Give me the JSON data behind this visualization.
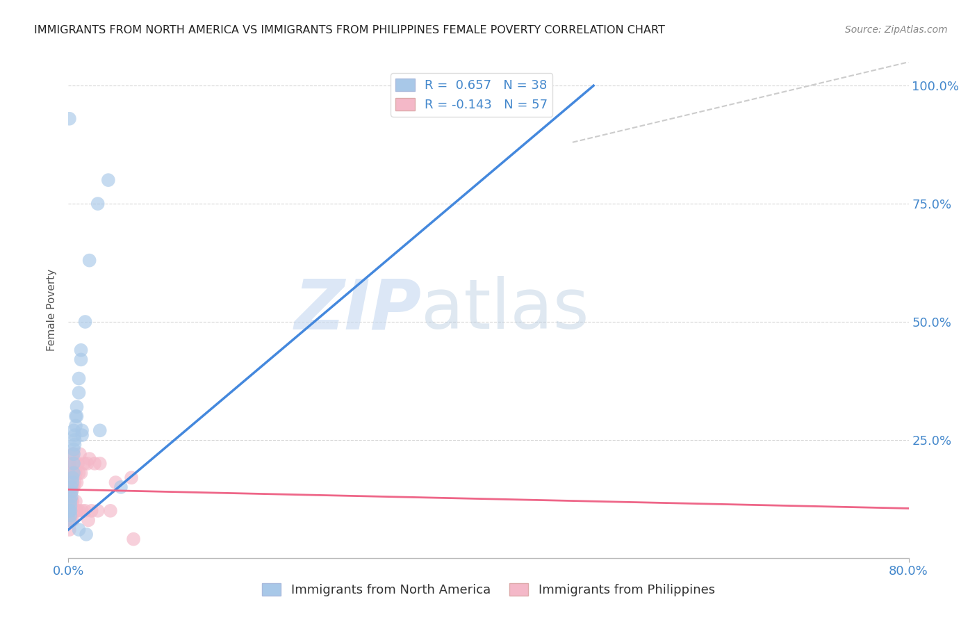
{
  "title": "IMMIGRANTS FROM NORTH AMERICA VS IMMIGRANTS FROM PHILIPPINES FEMALE POVERTY CORRELATION CHART",
  "source": "Source: ZipAtlas.com",
  "ylabel": "Female Poverty",
  "watermark_zip": "ZIP",
  "watermark_atlas": "atlas",
  "blue_R": 0.657,
  "blue_N": 38,
  "pink_R": -0.143,
  "pink_N": 57,
  "blue_color": "#a8c8e8",
  "pink_color": "#f4b8c8",
  "blue_line_color": "#4488dd",
  "pink_line_color": "#ee6688",
  "blue_scatter": [
    [
      0.001,
      0.93
    ],
    [
      0.038,
      0.8
    ],
    [
      0.028,
      0.75
    ],
    [
      0.02,
      0.63
    ],
    [
      0.016,
      0.5
    ],
    [
      0.012,
      0.44
    ],
    [
      0.012,
      0.42
    ],
    [
      0.01,
      0.38
    ],
    [
      0.01,
      0.35
    ],
    [
      0.008,
      0.32
    ],
    [
      0.008,
      0.3
    ],
    [
      0.007,
      0.3
    ],
    [
      0.007,
      0.28
    ],
    [
      0.006,
      0.26
    ],
    [
      0.006,
      0.25
    ],
    [
      0.006,
      0.24
    ],
    [
      0.005,
      0.23
    ],
    [
      0.005,
      0.22
    ],
    [
      0.005,
      0.2
    ],
    [
      0.005,
      0.18
    ],
    [
      0.004,
      0.17
    ],
    [
      0.004,
      0.16
    ],
    [
      0.003,
      0.15
    ],
    [
      0.003,
      0.14
    ],
    [
      0.003,
      0.13
    ],
    [
      0.002,
      0.12
    ],
    [
      0.002,
      0.11
    ],
    [
      0.002,
      0.1
    ],
    [
      0.002,
      0.09
    ],
    [
      0.001,
      0.1
    ],
    [
      0.001,
      0.08
    ],
    [
      0.013,
      0.27
    ],
    [
      0.013,
      0.26
    ],
    [
      0.03,
      0.27
    ],
    [
      0.017,
      0.05
    ],
    [
      0.01,
      0.06
    ],
    [
      0.05,
      0.15
    ],
    [
      0.005,
      0.27
    ]
  ],
  "pink_scatter": [
    [
      0.001,
      0.2
    ],
    [
      0.001,
      0.18
    ],
    [
      0.001,
      0.16
    ],
    [
      0.001,
      0.15
    ],
    [
      0.001,
      0.14
    ],
    [
      0.001,
      0.13
    ],
    [
      0.001,
      0.12
    ],
    [
      0.002,
      0.2
    ],
    [
      0.002,
      0.18
    ],
    [
      0.002,
      0.16
    ],
    [
      0.002,
      0.14
    ],
    [
      0.002,
      0.12
    ],
    [
      0.002,
      0.1
    ],
    [
      0.002,
      0.09
    ],
    [
      0.002,
      0.08
    ],
    [
      0.003,
      0.18
    ],
    [
      0.003,
      0.16
    ],
    [
      0.003,
      0.14
    ],
    [
      0.003,
      0.12
    ],
    [
      0.003,
      0.1
    ],
    [
      0.003,
      0.08
    ],
    [
      0.004,
      0.22
    ],
    [
      0.004,
      0.18
    ],
    [
      0.004,
      0.15
    ],
    [
      0.004,
      0.12
    ],
    [
      0.004,
      0.08
    ],
    [
      0.005,
      0.22
    ],
    [
      0.005,
      0.18
    ],
    [
      0.005,
      0.15
    ],
    [
      0.005,
      0.1
    ],
    [
      0.006,
      0.2
    ],
    [
      0.006,
      0.16
    ],
    [
      0.006,
      0.1
    ],
    [
      0.007,
      0.18
    ],
    [
      0.007,
      0.12
    ],
    [
      0.008,
      0.16
    ],
    [
      0.008,
      0.1
    ],
    [
      0.009,
      0.2
    ],
    [
      0.01,
      0.18
    ],
    [
      0.01,
      0.1
    ],
    [
      0.011,
      0.22
    ],
    [
      0.012,
      0.18
    ],
    [
      0.013,
      0.1
    ],
    [
      0.015,
      0.2
    ],
    [
      0.016,
      0.1
    ],
    [
      0.018,
      0.2
    ],
    [
      0.019,
      0.08
    ],
    [
      0.02,
      0.21
    ],
    [
      0.022,
      0.1
    ],
    [
      0.025,
      0.2
    ],
    [
      0.028,
      0.1
    ],
    [
      0.03,
      0.2
    ],
    [
      0.04,
      0.1
    ],
    [
      0.045,
      0.16
    ],
    [
      0.06,
      0.17
    ],
    [
      0.062,
      0.04
    ],
    [
      0.001,
      0.06
    ]
  ],
  "xlim": [
    0.0,
    0.8
  ],
  "ylim": [
    0.0,
    1.05
  ],
  "yticks": [
    0.0,
    0.25,
    0.5,
    0.75,
    1.0
  ],
  "ytick_labels": [
    "",
    "25.0%",
    "50.0%",
    "75.0%",
    "100.0%"
  ],
  "xtick_labels": [
    "0.0%",
    "80.0%"
  ],
  "background_color": "#ffffff",
  "grid_color": "#cccccc",
  "blue_line_x": [
    0.0,
    0.5
  ],
  "blue_line_y": [
    0.06,
    1.0
  ],
  "pink_line_x": [
    0.0,
    0.8
  ],
  "pink_line_y": [
    0.145,
    0.105
  ],
  "dash_line_x": [
    0.48,
    0.8
  ],
  "dash_line_y": [
    0.88,
    1.05
  ]
}
